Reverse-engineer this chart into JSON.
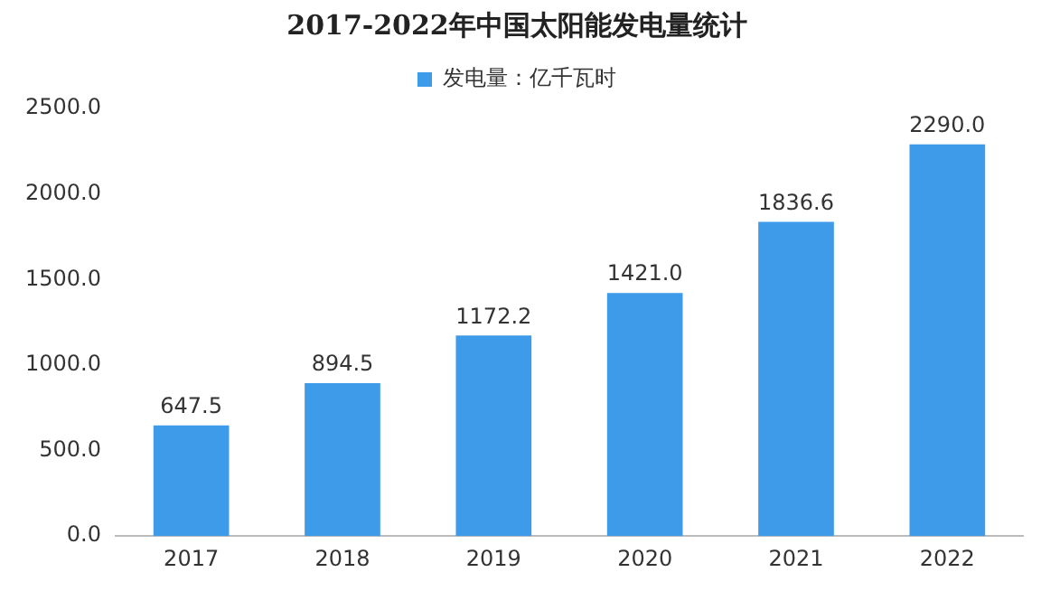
{
  "chart_data": {
    "type": "bar",
    "title": "2017-2022年中国太阳能发电量统计",
    "categories": [
      "2017",
      "2018",
      "2019",
      "2020",
      "2021",
      "2022"
    ],
    "series": [
      {
        "name": "发电量：亿千瓦时",
        "color": "#3d9be9",
        "values": [
          647.5,
          894.5,
          1172.2,
          1421.0,
          1836.6,
          2290.0
        ],
        "value_labels": [
          "647.5",
          "894.5",
          "1172.2",
          "1421.0",
          "1836.6",
          "2290.0"
        ]
      }
    ],
    "ylim": [
      0,
      2500
    ],
    "yticks": [
      {
        "value": 0,
        "label": "0.0"
      },
      {
        "value": 500,
        "label": "500.0"
      },
      {
        "value": 1000,
        "label": "1000.0"
      },
      {
        "value": 1500,
        "label": "1500.0"
      },
      {
        "value": 2000,
        "label": "2000.0"
      },
      {
        "value": 2500,
        "label": "2500.0"
      }
    ],
    "grid": false,
    "legend": "top"
  }
}
